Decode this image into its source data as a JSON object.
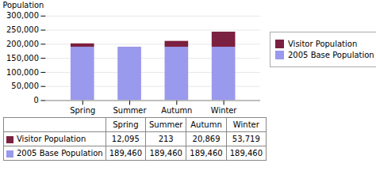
{
  "chart_data": {
    "type": "bar",
    "stacked": true,
    "categories": [
      "Spring",
      "Summer",
      "Autumn",
      "Winter"
    ],
    "series": [
      {
        "name": "2005 Base Population",
        "color": "#9999ee",
        "values": [
          189460,
          189460,
          189460,
          189460
        ],
        "value_labels": [
          "189,460",
          "189,460",
          "189,460",
          "189,460"
        ]
      },
      {
        "name": "Visitor Population",
        "color": "#7b2040",
        "values": [
          12095,
          213,
          20869,
          53719
        ],
        "value_labels": [
          "12,095",
          "213",
          "20,869",
          "53,719"
        ]
      }
    ],
    "ylabel": "Population",
    "ylim": [
      0,
      300000
    ],
    "yticks": [
      0,
      {
        "value": 50000,
        "label": "50,000"
      },
      {
        "value": 100000,
        "label": "100,000"
      },
      {
        "value": 150000,
        "label": "150,000"
      },
      {
        "value": 200000,
        "label": "200,000"
      },
      {
        "value": 250000,
        "label": "250,000"
      },
      {
        "value": 300000,
        "label": "300,000"
      }
    ],
    "grid": true,
    "legend": "right"
  }
}
